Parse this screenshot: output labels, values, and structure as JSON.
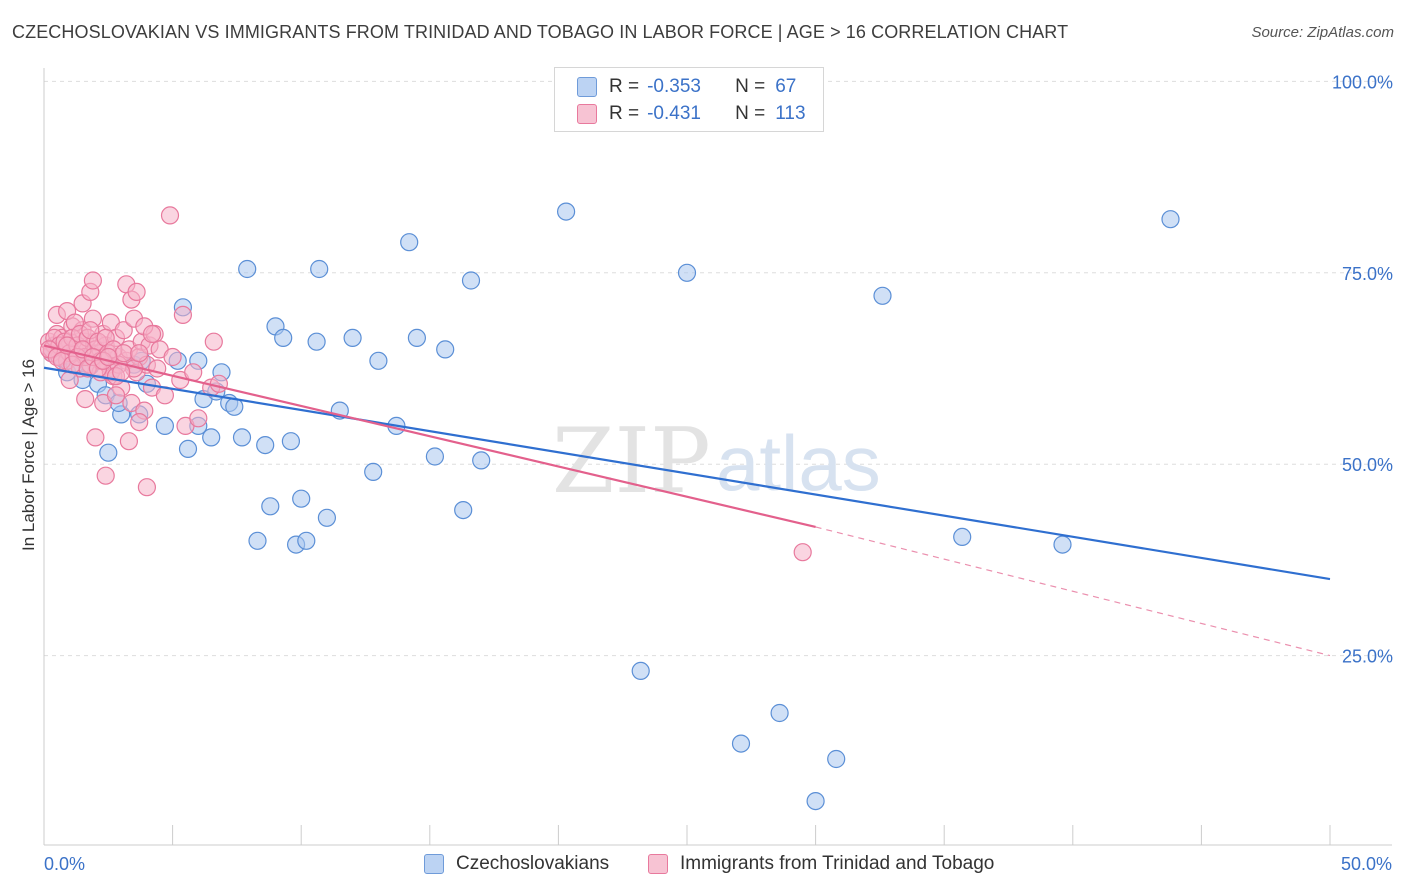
{
  "title": "CZECHOSLOVAKIAN VS IMMIGRANTS FROM TRINIDAD AND TOBAGO IN LABOR FORCE | AGE > 16 CORRELATION CHART",
  "source": "Source: ZipAtlas.com",
  "watermark": {
    "zip": "ZIP",
    "atlas": "atlas"
  },
  "legend": {
    "r_label": "R =",
    "n_label": "N =",
    "items": [
      {
        "r": "-0.353",
        "n": "67"
      },
      {
        "r": "-0.431",
        "n": "113"
      }
    ]
  },
  "colors": {
    "blue_fill": "#a9c6ee",
    "blue_stroke": "#5b8fd6",
    "blue_line": "#2f6fd0",
    "pink_fill": "#f5b3c8",
    "pink_stroke": "#e8799d",
    "pink_line": "#e3608c",
    "axis_text": "#3b72c8",
    "grid": "#dddddd"
  },
  "chart_data": {
    "type": "scatter",
    "xlabel": "",
    "ylabel": "In Labor Force | Age > 16",
    "xlim": [
      0,
      50
    ],
    "ylim": [
      0,
      105
    ],
    "x_tick_labels": [
      {
        "value": 0,
        "label": "0.0%"
      },
      {
        "value": 50,
        "label": "50.0%"
      }
    ],
    "y_tick_labels": [
      {
        "value": 25,
        "label": "25.0%"
      },
      {
        "value": 50,
        "label": "50.0%"
      },
      {
        "value": 75,
        "label": "75.0%"
      },
      {
        "value": 100,
        "label": "100.0%"
      }
    ],
    "grid": true,
    "legend_position": "top-center",
    "series": [
      {
        "name": "Czechoslovakians",
        "trend": {
          "x": [
            0,
            50
          ],
          "y": [
            62.6,
            35.0
          ]
        },
        "points": [
          [
            0.3,
            64.5
          ],
          [
            0.5,
            65.5
          ],
          [
            0.7,
            63.8
          ],
          [
            0.9,
            62.0
          ],
          [
            1.2,
            63.0
          ],
          [
            1.5,
            61.0
          ],
          [
            1.8,
            62.8
          ],
          [
            2.1,
            60.5
          ],
          [
            2.4,
            59.0
          ],
          [
            2.7,
            62.5
          ],
          [
            2.5,
            51.5
          ],
          [
            3.0,
            56.5
          ],
          [
            3.5,
            63.0
          ],
          [
            3.7,
            56.5
          ],
          [
            4.0,
            60.5
          ],
          [
            4.7,
            55.0
          ],
          [
            5.2,
            63.5
          ],
          [
            5.4,
            70.5
          ],
          [
            5.6,
            52.0
          ],
          [
            6.0,
            55.0
          ],
          [
            6.2,
            58.5
          ],
          [
            6.5,
            53.5
          ],
          [
            6.7,
            59.5
          ],
          [
            6.9,
            62.0
          ],
          [
            7.2,
            58.0
          ],
          [
            7.4,
            57.5
          ],
          [
            7.7,
            53.5
          ],
          [
            7.9,
            75.5
          ],
          [
            8.3,
            40.0
          ],
          [
            8.6,
            52.5
          ],
          [
            8.8,
            44.5
          ],
          [
            9.0,
            68.0
          ],
          [
            9.3,
            66.5
          ],
          [
            9.6,
            53.0
          ],
          [
            9.8,
            39.5
          ],
          [
            10.0,
            45.5
          ],
          [
            10.2,
            40.0
          ],
          [
            10.6,
            66.0
          ],
          [
            10.7,
            75.5
          ],
          [
            11.0,
            43.0
          ],
          [
            11.5,
            57.0
          ],
          [
            12.0,
            66.5
          ],
          [
            12.8,
            49.0
          ],
          [
            13.0,
            63.5
          ],
          [
            13.7,
            55.0
          ],
          [
            14.2,
            79.0
          ],
          [
            14.5,
            66.5
          ],
          [
            15.2,
            51.0
          ],
          [
            15.6,
            65.0
          ],
          [
            16.3,
            44.0
          ],
          [
            16.6,
            74.0
          ],
          [
            17.0,
            50.5
          ],
          [
            20.3,
            83.0
          ],
          [
            23.2,
            23.0
          ],
          [
            25.0,
            75.0
          ],
          [
            27.1,
            13.5
          ],
          [
            28.6,
            17.5
          ],
          [
            30.0,
            6.0
          ],
          [
            30.8,
            11.5
          ],
          [
            32.6,
            72.0
          ],
          [
            35.7,
            40.5
          ],
          [
            39.6,
            39.5
          ],
          [
            43.8,
            82.0
          ],
          [
            1.4,
            64.0
          ],
          [
            3.8,
            63.5
          ],
          [
            6.0,
            63.5
          ],
          [
            2.9,
            58.0
          ]
        ]
      },
      {
        "name": "Immigrants from Trinidad and Tobago",
        "trend": {
          "x": [
            0,
            30
          ],
          "y": [
            65.5,
            41.8
          ]
        },
        "trend_dashed": {
          "x": [
            30,
            50
          ],
          "y": [
            41.8,
            25.0
          ]
        },
        "points": [
          [
            0.2,
            66.0
          ],
          [
            0.3,
            64.5
          ],
          [
            0.4,
            65.5
          ],
          [
            0.5,
            67.0
          ],
          [
            0.6,
            64.0
          ],
          [
            0.7,
            66.5
          ],
          [
            0.8,
            65.0
          ],
          [
            0.9,
            63.5
          ],
          [
            1.0,
            66.0
          ],
          [
            1.1,
            68.0
          ],
          [
            1.2,
            65.0
          ],
          [
            1.3,
            64.0
          ],
          [
            1.4,
            62.5
          ],
          [
            1.5,
            67.5
          ],
          [
            1.6,
            66.0
          ],
          [
            1.7,
            65.0
          ],
          [
            1.8,
            63.0
          ],
          [
            1.9,
            69.0
          ],
          [
            2.0,
            66.0
          ],
          [
            2.1,
            64.5
          ],
          [
            2.2,
            62.0
          ],
          [
            2.3,
            67.0
          ],
          [
            2.4,
            65.5
          ],
          [
            2.5,
            63.0
          ],
          [
            2.6,
            68.5
          ],
          [
            2.7,
            61.5
          ],
          [
            2.8,
            66.5
          ],
          [
            2.9,
            64.0
          ],
          [
            3.0,
            60.0
          ],
          [
            3.1,
            67.5
          ],
          [
            3.2,
            63.5
          ],
          [
            3.3,
            65.0
          ],
          [
            3.4,
            58.0
          ],
          [
            3.5,
            69.0
          ],
          [
            3.6,
            62.0
          ],
          [
            3.7,
            64.0
          ],
          [
            3.8,
            66.0
          ],
          [
            3.9,
            57.0
          ],
          [
            4.0,
            63.0
          ],
          [
            4.1,
            65.5
          ],
          [
            4.2,
            60.0
          ],
          [
            4.3,
            67.0
          ],
          [
            4.4,
            62.5
          ],
          [
            4.5,
            65.0
          ],
          [
            4.7,
            59.0
          ],
          [
            5.0,
            64.0
          ],
          [
            5.3,
            61.0
          ],
          [
            5.5,
            55.0
          ],
          [
            5.8,
            62.0
          ],
          [
            6.5,
            60.0
          ],
          [
            0.5,
            69.5
          ],
          [
            0.9,
            70.0
          ],
          [
            1.0,
            61.0
          ],
          [
            1.2,
            68.5
          ],
          [
            1.5,
            71.0
          ],
          [
            1.6,
            58.5
          ],
          [
            1.8,
            72.5
          ],
          [
            1.9,
            74.0
          ],
          [
            2.0,
            53.5
          ],
          [
            2.2,
            64.5
          ],
          [
            2.3,
            58.0
          ],
          [
            2.4,
            48.5
          ],
          [
            2.6,
            62.0
          ],
          [
            2.8,
            59.0
          ],
          [
            3.2,
            73.5
          ],
          [
            3.3,
            53.0
          ],
          [
            3.4,
            71.5
          ],
          [
            3.6,
            72.5
          ],
          [
            3.7,
            55.5
          ],
          [
            3.9,
            68.0
          ],
          [
            4.0,
            47.0
          ],
          [
            4.2,
            67.0
          ],
          [
            4.9,
            82.5
          ],
          [
            5.4,
            69.5
          ],
          [
            6.0,
            56.0
          ],
          [
            6.6,
            66.0
          ],
          [
            29.5,
            38.5
          ],
          [
            0.3,
            65.0
          ],
          [
            0.4,
            66.5
          ],
          [
            0.6,
            65.5
          ],
          [
            0.8,
            66.0
          ],
          [
            1.0,
            64.5
          ],
          [
            1.1,
            66.5
          ],
          [
            1.3,
            65.5
          ],
          [
            1.4,
            67.0
          ],
          [
            1.6,
            64.0
          ],
          [
            1.7,
            66.5
          ],
          [
            1.8,
            67.5
          ],
          [
            2.0,
            65.0
          ],
          [
            2.1,
            66.0
          ],
          [
            2.2,
            63.5
          ],
          [
            2.4,
            66.5
          ],
          [
            2.5,
            64.5
          ],
          [
            2.7,
            65.0
          ],
          [
            2.9,
            63.0
          ],
          [
            3.1,
            64.5
          ],
          [
            3.5,
            62.5
          ],
          [
            3.7,
            64.5
          ],
          [
            0.2,
            65.0
          ],
          [
            0.5,
            64.0
          ],
          [
            0.7,
            63.5
          ],
          [
            0.9,
            65.5
          ],
          [
            1.1,
            63.0
          ],
          [
            1.3,
            64.0
          ],
          [
            1.5,
            65.0
          ],
          [
            1.7,
            62.5
          ],
          [
            1.9,
            64.0
          ],
          [
            2.1,
            62.5
          ],
          [
            2.3,
            63.5
          ],
          [
            2.5,
            64.0
          ],
          [
            2.8,
            61.5
          ],
          [
            3.0,
            62.0
          ],
          [
            6.8,
            60.5
          ]
        ]
      }
    ]
  }
}
